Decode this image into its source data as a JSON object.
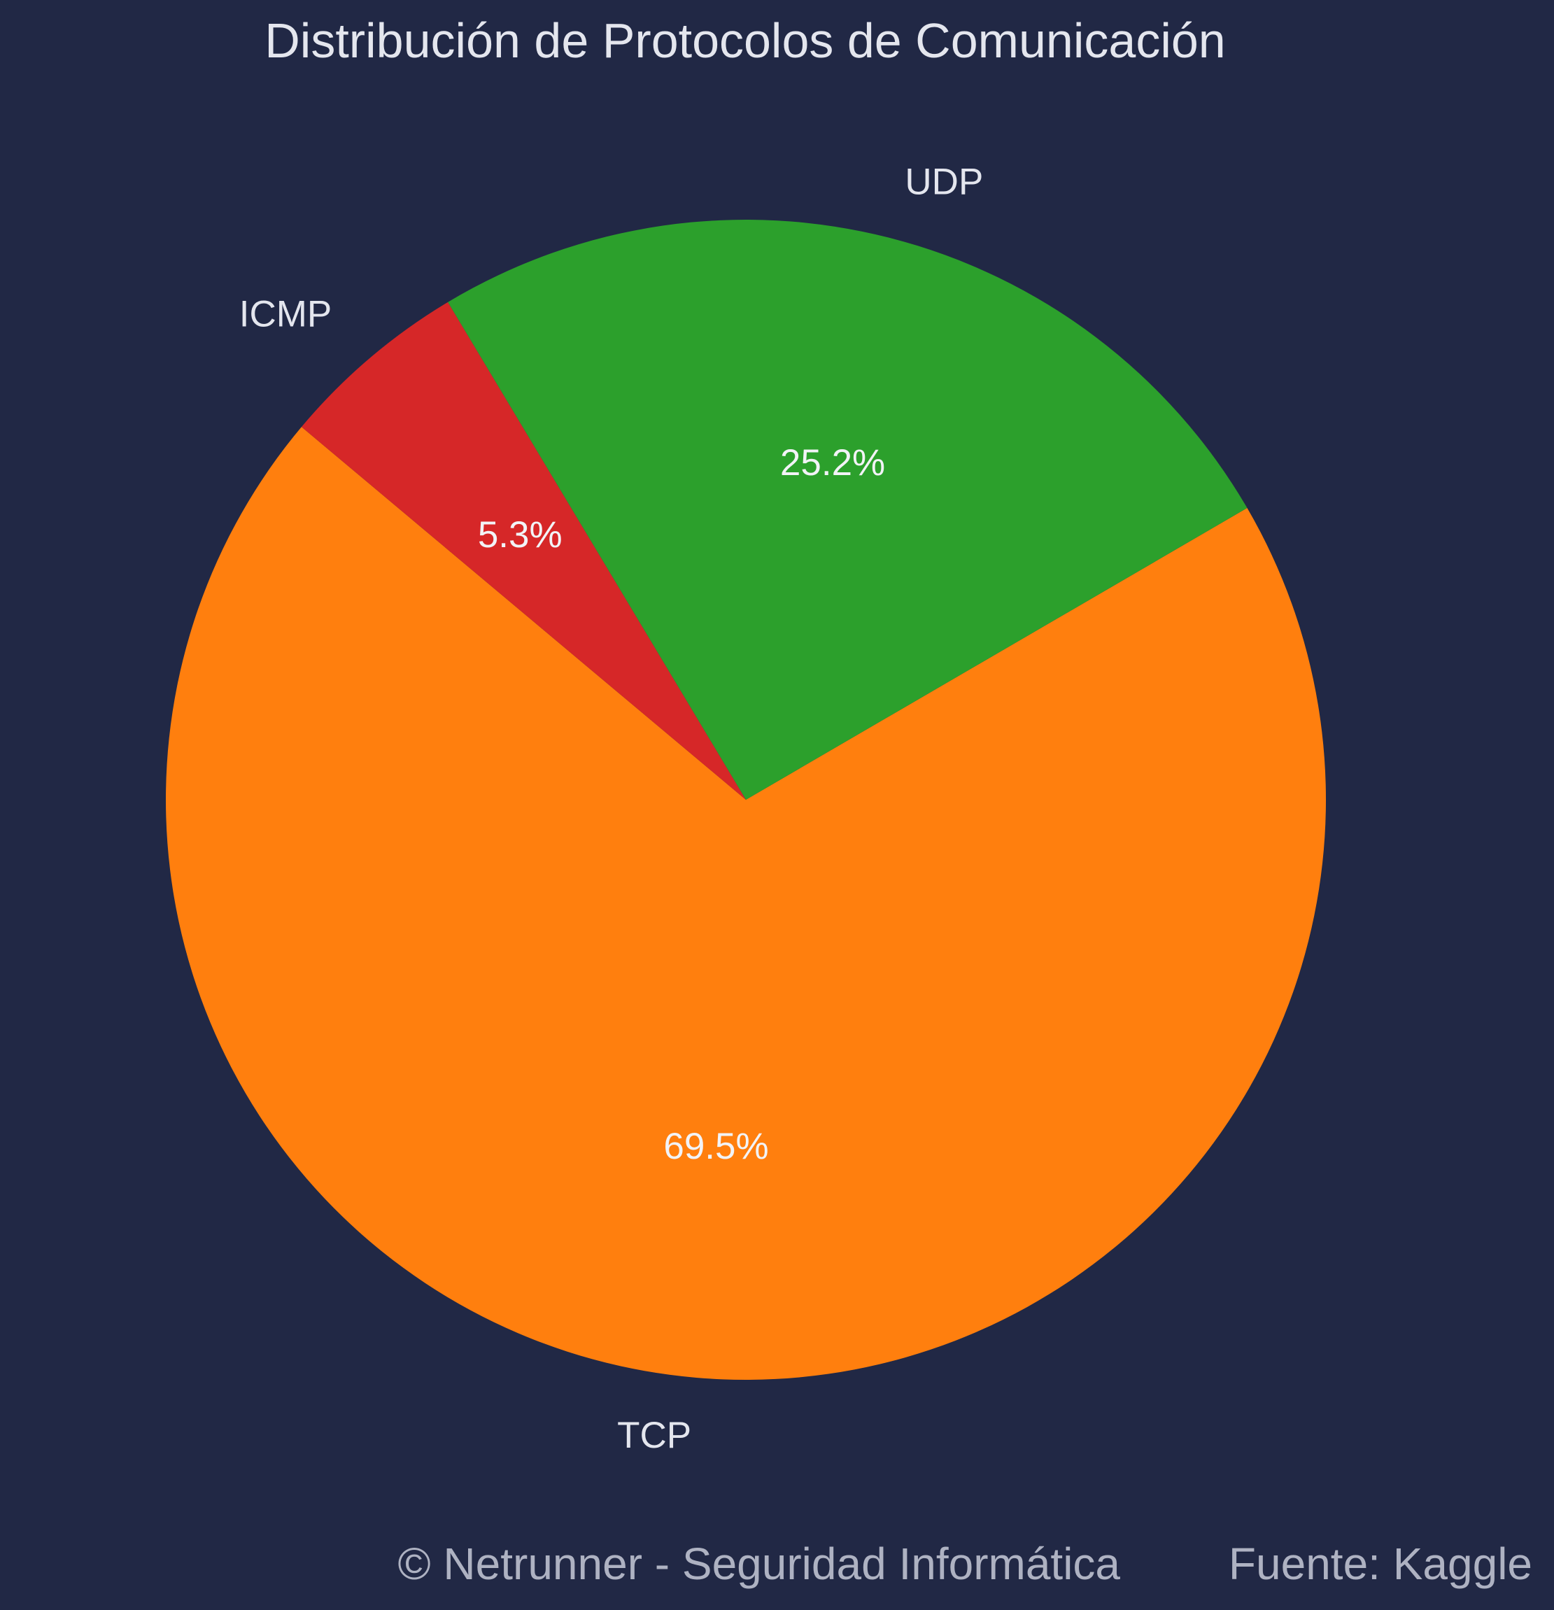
{
  "background_color": "#212845",
  "chart_data": {
    "type": "pie",
    "title": "Distribución de Protocolos de Comunicación",
    "start_angle_deg": 140,
    "direction": "counterclockwise",
    "slices": [
      {
        "label": "TCP",
        "value": 69.5,
        "pct_label": "69.5%",
        "color": "#ff7f0e"
      },
      {
        "label": "UDP",
        "value": 25.2,
        "pct_label": "25.2%",
        "color": "#2ca02c"
      },
      {
        "label": "ICMP",
        "value": 5.3,
        "pct_label": "5.3%",
        "color": "#d62728"
      }
    ]
  },
  "footer": {
    "copyright": "© Netrunner - Seguridad Informática",
    "source": "Fuente: Kaggle"
  }
}
